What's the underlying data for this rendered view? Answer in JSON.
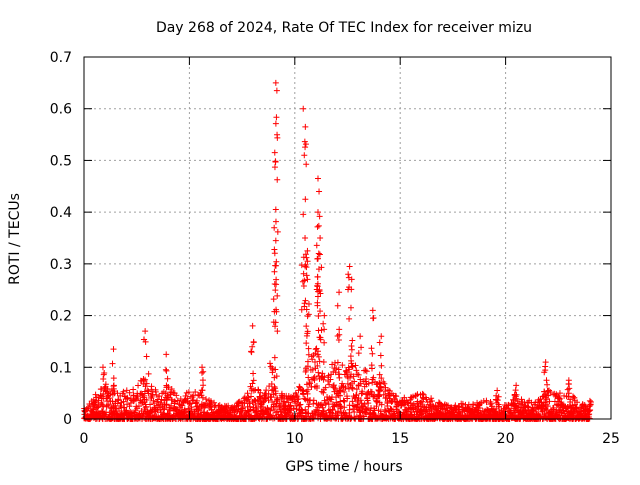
{
  "chart_data": {
    "type": "scatter",
    "title": "Day 268 of 2024, Rate Of TEC Index for receiver mizu",
    "xlabel": "GPS time / hours",
    "ylabel": "ROTI / TECUs",
    "xlim": [
      0,
      25
    ],
    "ylim": [
      0,
      0.7
    ],
    "x_ticks": [
      0,
      5,
      10,
      15,
      20,
      25
    ],
    "x_tick_labels": [
      "0",
      "5",
      "10",
      "15",
      "20",
      "25"
    ],
    "y_ticks": [
      0,
      0.1,
      0.2,
      0.3,
      0.4,
      0.5,
      0.6,
      0.7
    ],
    "y_tick_labels": [
      "0",
      "0.1",
      "0.2",
      "0.3",
      "0.4",
      "0.5",
      "0.6",
      "0.7"
    ],
    "grid": true,
    "marker": "+",
    "marker_color": "#ff0000",
    "data_range_hours": [
      0,
      24
    ],
    "notable_peaks": [
      {
        "x": 0.9,
        "y": 0.1
      },
      {
        "x": 1.4,
        "y": 0.135
      },
      {
        "x": 2.9,
        "y": 0.17
      },
      {
        "x": 3.9,
        "y": 0.125
      },
      {
        "x": 5.6,
        "y": 0.1
      },
      {
        "x": 8.0,
        "y": 0.18
      },
      {
        "x": 9.1,
        "y": 0.65
      },
      {
        "x": 9.15,
        "y": 0.635
      },
      {
        "x": 9.05,
        "y": 0.515
      },
      {
        "x": 9.1,
        "y": 0.405
      },
      {
        "x": 9.1,
        "y": 0.345
      },
      {
        "x": 10.4,
        "y": 0.6
      },
      {
        "x": 10.5,
        "y": 0.565
      },
      {
        "x": 10.45,
        "y": 0.51
      },
      {
        "x": 10.5,
        "y": 0.425
      },
      {
        "x": 10.6,
        "y": 0.325
      },
      {
        "x": 10.6,
        "y": 0.27
      },
      {
        "x": 11.1,
        "y": 0.465
      },
      {
        "x": 11.15,
        "y": 0.44
      },
      {
        "x": 11.1,
        "y": 0.4
      },
      {
        "x": 11.2,
        "y": 0.35
      },
      {
        "x": 11.1,
        "y": 0.31
      },
      {
        "x": 11.4,
        "y": 0.2
      },
      {
        "x": 12.1,
        "y": 0.245
      },
      {
        "x": 12.6,
        "y": 0.295
      },
      {
        "x": 12.7,
        "y": 0.27
      },
      {
        "x": 13.1,
        "y": 0.16
      },
      {
        "x": 13.7,
        "y": 0.21
      },
      {
        "x": 14.1,
        "y": 0.16
      },
      {
        "x": 19.6,
        "y": 0.055
      },
      {
        "x": 20.5,
        "y": 0.065
      },
      {
        "x": 21.9,
        "y": 0.11
      },
      {
        "x": 23.0,
        "y": 0.075
      },
      {
        "x": 24.0,
        "y": 0.035
      }
    ],
    "activity_envelope": [
      [
        0,
        0.02
      ],
      [
        0.5,
        0.045
      ],
      [
        1.0,
        0.07
      ],
      [
        1.5,
        0.05
      ],
      [
        2.0,
        0.06
      ],
      [
        2.5,
        0.06
      ],
      [
        3.0,
        0.1
      ],
      [
        3.5,
        0.055
      ],
      [
        4.0,
        0.075
      ],
      [
        4.5,
        0.04
      ],
      [
        5.0,
        0.06
      ],
      [
        5.5,
        0.055
      ],
      [
        6.0,
        0.035
      ],
      [
        7.0,
        0.03
      ],
      [
        7.5,
        0.035
      ],
      [
        8.0,
        0.08
      ],
      [
        8.5,
        0.05
      ],
      [
        9.0,
        0.14
      ],
      [
        9.5,
        0.045
      ],
      [
        10.0,
        0.045
      ],
      [
        10.5,
        0.1
      ],
      [
        11.0,
        0.14
      ],
      [
        11.5,
        0.1
      ],
      [
        12.0,
        0.12
      ],
      [
        12.5,
        0.11
      ],
      [
        13.0,
        0.11
      ],
      [
        13.5,
        0.09
      ],
      [
        14.0,
        0.08
      ],
      [
        14.5,
        0.06
      ],
      [
        15.0,
        0.04
      ],
      [
        16.0,
        0.05
      ],
      [
        17.0,
        0.03
      ],
      [
        18.0,
        0.03
      ],
      [
        19.0,
        0.035
      ],
      [
        19.5,
        0.04
      ],
      [
        20.0,
        0.03
      ],
      [
        20.5,
        0.05
      ],
      [
        21.0,
        0.035
      ],
      [
        21.5,
        0.04
      ],
      [
        22.0,
        0.06
      ],
      [
        22.5,
        0.05
      ],
      [
        23.0,
        0.05
      ],
      [
        23.5,
        0.035
      ],
      [
        24.0,
        0.02
      ]
    ]
  }
}
